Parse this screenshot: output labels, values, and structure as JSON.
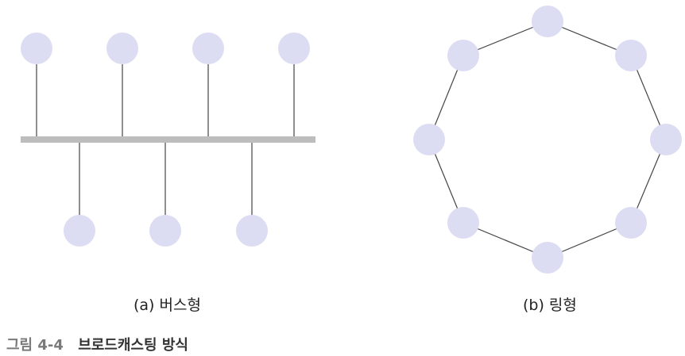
{
  "colors": {
    "node_fill": "#dcdcf3",
    "bus_line": "#bdbdbd",
    "connector": "#444444"
  },
  "diagrams": {
    "bus": {
      "label": "(a) 버스형",
      "nodes_above": 4,
      "nodes_below": 3
    },
    "ring": {
      "label": "(b) 링형",
      "nodes": 8
    }
  },
  "caption": {
    "number": "그림 4-4",
    "title": "브로드캐스팅 방식"
  }
}
